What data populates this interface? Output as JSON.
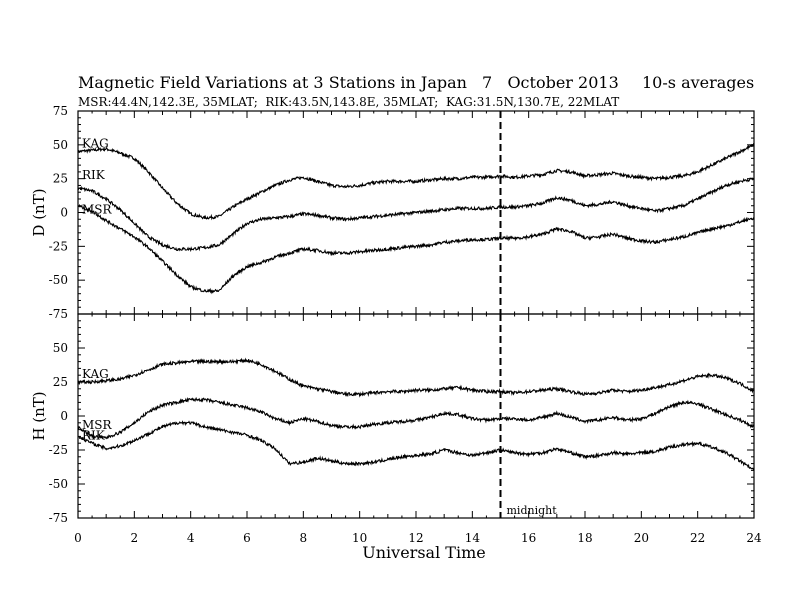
{
  "chart_data": {
    "type": "line",
    "title": "Magnetic Field Variations at 3 Stations in Japan",
    "date": "7   October 2013",
    "averaging": "10-s averages",
    "subtitle": "MSR:44.4N,142.3E, 35MLAT;  RIK:43.5N,143.8E, 35MLAT;  KAG:31.5N,130.7E, 22MLAT",
    "xlabel": "Universal Time",
    "xlim": [
      0,
      24
    ],
    "xticks": [
      0,
      2,
      4,
      6,
      8,
      10,
      12,
      14,
      16,
      18,
      20,
      22,
      24
    ],
    "xtick_labels": [
      "0",
      "2",
      "4",
      "6",
      "8",
      "10",
      "12",
      "14",
      "16",
      "18",
      "20",
      "22",
      "24"
    ],
    "marker": {
      "x": 15,
      "label": "midnight"
    },
    "panels": [
      {
        "ylabel": "D (nT)",
        "ylim": [
          -75,
          75
        ],
        "yticks": [
          -75,
          -50,
          -25,
          0,
          25,
          50,
          75
        ],
        "ytick_labels": [
          "-75",
          "-50",
          "-25",
          "0",
          "25",
          "50",
          "75"
        ],
        "series": [
          {
            "name": "KAG",
            "x": [
              0,
              0.5,
              1,
              1.5,
              2,
              2.5,
              3,
              3.5,
              4,
              4.5,
              5,
              5.5,
              6,
              6.5,
              7,
              7.5,
              8,
              8.5,
              9,
              9.5,
              10,
              10.5,
              11,
              11.5,
              12,
              12.5,
              13,
              13.5,
              14,
              14.5,
              15,
              15.5,
              16,
              16.5,
              17,
              17.5,
              18,
              18.5,
              19,
              19.5,
              20,
              20.5,
              21,
              21.5,
              22,
              22.5,
              23,
              23.5,
              24
            ],
            "values": [
              45,
              46,
              47,
              44,
              40,
              30,
              18,
              7,
              -1,
              -4,
              -3,
              4,
              10,
              15,
              20,
              24,
              26,
              23,
              20,
              19,
              20,
              22,
              23,
              23,
              23,
              24,
              25,
              25,
              26,
              26,
              27,
              26,
              27,
              28,
              31,
              30,
              27,
              28,
              29,
              27,
              26,
              25,
              26,
              27,
              30,
              35,
              40,
              45,
              50
            ]
          },
          {
            "name": "RIK",
            "x": [
              0,
              0.5,
              1,
              1.5,
              2,
              2.5,
              3,
              3.5,
              4,
              4.5,
              5,
              5.5,
              6,
              6.5,
              7,
              7.5,
              8,
              8.5,
              9,
              9.5,
              10,
              10.5,
              11,
              11.5,
              12,
              12.5,
              13,
              13.5,
              14,
              14.5,
              15,
              15.5,
              16,
              16.5,
              17,
              17.5,
              18,
              18.5,
              19,
              19.5,
              20,
              20.5,
              21,
              21.5,
              22,
              22.5,
              23,
              23.5,
              24
            ],
            "values": [
              18,
              16,
              10,
              2,
              -8,
              -18,
              -24,
              -27,
              -27,
              -26,
              -24,
              -16,
              -8,
              -5,
              -4,
              -3,
              -1,
              -2,
              -4,
              -5,
              -4,
              -3,
              -2,
              -1,
              0,
              1,
              2,
              3,
              3,
              3,
              4,
              4,
              5,
              7,
              11,
              9,
              5,
              6,
              8,
              5,
              3,
              1,
              3,
              5,
              10,
              15,
              20,
              23,
              25
            ]
          },
          {
            "name": "MSR",
            "x": [
              0,
              0.5,
              1,
              1.5,
              2,
              2.5,
              3,
              3.5,
              4,
              4.5,
              5,
              5.5,
              6,
              6.5,
              7,
              7.5,
              8,
              8.5,
              9,
              9.5,
              10,
              10.5,
              11,
              11.5,
              12,
              12.5,
              13,
              13.5,
              14,
              14.5,
              15,
              15.5,
              16,
              16.5,
              17,
              17.5,
              18,
              18.5,
              19,
              19.5,
              20,
              20.5,
              21,
              21.5,
              22,
              22.5,
              23,
              23.5,
              24
            ],
            "values": [
              5,
              1,
              -6,
              -12,
              -18,
              -26,
              -36,
              -46,
              -55,
              -58,
              -58,
              -47,
              -40,
              -37,
              -33,
              -30,
              -27,
              -28,
              -30,
              -30,
              -29,
              -28,
              -27,
              -26,
              -25,
              -24,
              -22,
              -21,
              -20,
              -20,
              -19,
              -19,
              -18,
              -16,
              -12,
              -14,
              -19,
              -18,
              -16,
              -19,
              -21,
              -22,
              -20,
              -18,
              -15,
              -12,
              -10,
              -7,
              -4
            ]
          }
        ]
      },
      {
        "ylabel": "H (nT)",
        "ylim": [
          -75,
          75
        ],
        "yticks": [
          -75,
          -50,
          -25,
          0,
          25,
          50,
          75
        ],
        "ytick_labels": [
          "-75",
          "-50",
          "-25",
          "0",
          "25",
          "50",
          "75"
        ],
        "series": [
          {
            "name": "KAG",
            "x": [
              0,
              0.5,
              1,
              1.5,
              2,
              2.5,
              3,
              3.5,
              4,
              4.5,
              5,
              5.5,
              6,
              6.5,
              7,
              7.5,
              8,
              8.5,
              9,
              9.5,
              10,
              10.5,
              11,
              11.5,
              12,
              12.5,
              13,
              13.5,
              14,
              14.5,
              15,
              15.5,
              16,
              16.5,
              17,
              17.5,
              18,
              18.5,
              19,
              19.5,
              20,
              20.5,
              21,
              21.5,
              22,
              22.5,
              23,
              23.5,
              24
            ],
            "values": [
              25,
              25,
              26,
              27,
              30,
              34,
              38,
              39,
              40,
              40,
              40,
              40,
              41,
              38,
              33,
              27,
              22,
              20,
              18,
              16,
              16,
              17,
              18,
              18,
              19,
              19,
              20,
              21,
              19,
              18,
              18,
              17,
              18,
              19,
              20,
              18,
              16,
              17,
              19,
              18,
              19,
              21,
              23,
              26,
              29,
              30,
              28,
              24,
              18
            ]
          },
          {
            "name": "MSR",
            "x": [
              0,
              0.5,
              1,
              1.5,
              2,
              2.5,
              3,
              3.5,
              4,
              4.5,
              5,
              5.5,
              6,
              6.5,
              7,
              7.5,
              8,
              8.5,
              9,
              9.5,
              10,
              10.5,
              11,
              11.5,
              12,
              12.5,
              13,
              13.5,
              14,
              14.5,
              15,
              15.5,
              16,
              16.5,
              17,
              17.5,
              18,
              18.5,
              19,
              19.5,
              20,
              20.5,
              21,
              21.5,
              22,
              22.5,
              23,
              23.5,
              24
            ],
            "values": [
              -8,
              -15,
              -16,
              -12,
              -5,
              3,
              8,
              10,
              12,
              12,
              10,
              8,
              6,
              3,
              -2,
              -5,
              -2,
              -4,
              -7,
              -8,
              -8,
              -6,
              -5,
              -4,
              -3,
              -1,
              2,
              1,
              -2,
              -3,
              -2,
              -2,
              -3,
              -1,
              2,
              -1,
              -4,
              -3,
              -1,
              -3,
              -2,
              2,
              7,
              10,
              9,
              5,
              1,
              -3,
              -8
            ]
          },
          {
            "name": "RIK",
            "x": [
              0,
              0.5,
              1,
              1.5,
              2,
              2.5,
              3,
              3.5,
              4,
              4.5,
              5,
              5.5,
              6,
              6.5,
              7,
              7.5,
              8,
              8.5,
              9,
              9.5,
              10,
              10.5,
              11,
              11.5,
              12,
              12.5,
              13,
              13.5,
              14,
              14.5,
              15,
              15.5,
              16,
              16.5,
              17,
              17.5,
              18,
              18.5,
              19,
              19.5,
              20,
              20.5,
              21,
              21.5,
              22,
              22.5,
              23,
              23.5,
              24
            ],
            "values": [
              -15,
              -20,
              -24,
              -22,
              -18,
              -13,
              -8,
              -5,
              -5,
              -8,
              -10,
              -12,
              -14,
              -18,
              -24,
              -35,
              -34,
              -31,
              -33,
              -35,
              -35,
              -34,
              -32,
              -30,
              -29,
              -28,
              -25,
              -27,
              -29,
              -27,
              -25,
              -27,
              -28,
              -27,
              -24,
              -27,
              -30,
              -29,
              -27,
              -28,
              -27,
              -26,
              -23,
              -21,
              -20,
              -23,
              -27,
              -33,
              -40
            ]
          }
        ]
      }
    ]
  }
}
